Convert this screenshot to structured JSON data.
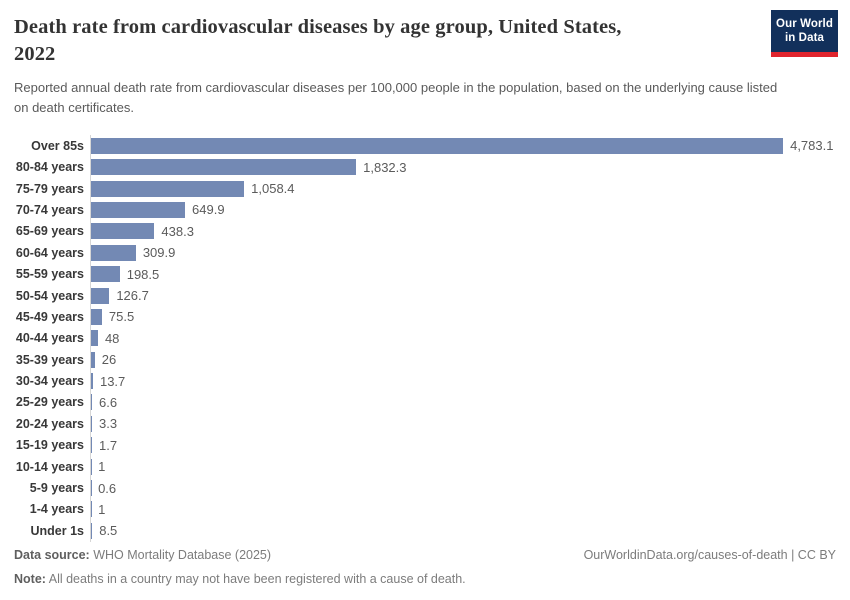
{
  "header": {
    "title_lines": [
      "Death rate from cardiovascular diseases by age group, United States,",
      "2022"
    ],
    "subtitle": "Reported annual death rate from cardiovascular diseases per 100,000 people in the population, based on the underlying cause listed on death certificates.",
    "logo": {
      "line1": "Our World",
      "line2": "in Data"
    }
  },
  "chart_data": {
    "type": "bar",
    "orientation": "horizontal",
    "title": "Death rate from cardiovascular diseases by age group, United States, 2022",
    "subtitle": "Reported annual death rate from cardiovascular diseases per 100,000 people in the population, based on the underlying cause listed on death certificates.",
    "categories": [
      "Over 85s",
      "80-84 years",
      "75-79 years",
      "70-74 years",
      "65-69 years",
      "60-64 years",
      "55-59 years",
      "50-54 years",
      "45-49 years",
      "40-44 years",
      "35-39 years",
      "30-34 years",
      "25-29 years",
      "20-24 years",
      "15-19 years",
      "10-14 years",
      "5-9 years",
      "1-4 years",
      "Under 1s"
    ],
    "values": [
      4783.1,
      1832.3,
      1058.4,
      649.9,
      438.3,
      309.9,
      198.5,
      126.7,
      75.5,
      48,
      26,
      13.7,
      6.6,
      3.3,
      1.7,
      1,
      0.6,
      1,
      8.5
    ],
    "value_labels": [
      "4,783.1",
      "1,832.3",
      "1,058.4",
      "649.9",
      "438.3",
      "309.9",
      "198.5",
      "126.7",
      "75.5",
      "48",
      "26",
      "13.7",
      "6.6",
      "3.3",
      "1.7",
      "1",
      "0.6",
      "1",
      "8.5"
    ],
    "xlim": [
      0,
      4783.1
    ],
    "bar_color": "#7389b4",
    "grid": false,
    "legend": "none"
  },
  "footer": {
    "datasource_label": "Data source:",
    "datasource_text": " WHO Mortality Database (2025)",
    "note_label": "Note:",
    "note_text": " All deaths in a country may not have been registered with a cause of death.",
    "attribution": "OurWorldinData.org/causes-of-death | CC BY"
  }
}
